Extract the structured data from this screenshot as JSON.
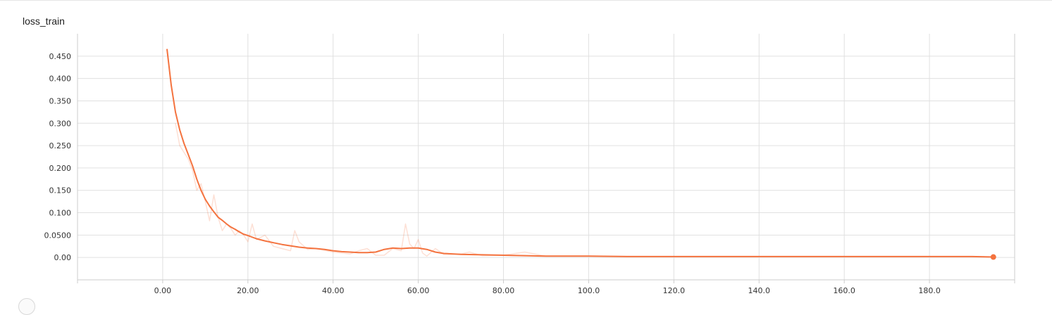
{
  "chart_data": {
    "type": "line",
    "title": "loss_train",
    "xlabel": "",
    "ylabel": "",
    "xlim": [
      -20,
      200
    ],
    "ylim": [
      -0.05,
      0.5
    ],
    "grid": true,
    "xticks": [
      0,
      20,
      40,
      60,
      80,
      100,
      120,
      140,
      160,
      180
    ],
    "xtick_labels": [
      "0.00",
      "20.00",
      "40.00",
      "60.00",
      "80.00",
      "100.0",
      "120.0",
      "140.0",
      "160.0",
      "180.0"
    ],
    "yticks": [
      0,
      0.05,
      0.1,
      0.15,
      0.2,
      0.25,
      0.3,
      0.35,
      0.4,
      0.45
    ],
    "ytick_labels": [
      "0.00",
      "0.0500",
      "0.100",
      "0.150",
      "0.200",
      "0.250",
      "0.300",
      "0.350",
      "0.400",
      "0.450"
    ],
    "series": [
      {
        "role": "smoothed",
        "color": "#f4733f",
        "x": [
          1,
          2,
          3,
          4,
          5,
          6,
          7,
          8,
          9,
          10,
          11,
          12,
          13,
          14,
          15,
          16,
          17,
          18,
          19,
          20,
          22,
          24,
          26,
          28,
          30,
          32,
          34,
          36,
          38,
          40,
          42,
          44,
          46,
          48,
          50,
          52,
          54,
          56,
          58,
          60,
          62,
          64,
          66,
          68,
          70,
          75,
          80,
          85,
          90,
          95,
          100,
          110,
          120,
          130,
          140,
          150,
          160,
          170,
          180,
          190,
          195
        ],
        "y": [
          0.466,
          0.385,
          0.325,
          0.285,
          0.255,
          0.23,
          0.205,
          0.175,
          0.15,
          0.13,
          0.115,
          0.102,
          0.09,
          0.083,
          0.075,
          0.068,
          0.063,
          0.057,
          0.052,
          0.049,
          0.042,
          0.037,
          0.033,
          0.029,
          0.026,
          0.023,
          0.021,
          0.02,
          0.018,
          0.015,
          0.013,
          0.012,
          0.011,
          0.011,
          0.012,
          0.018,
          0.021,
          0.02,
          0.021,
          0.021,
          0.018,
          0.012,
          0.009,
          0.008,
          0.007,
          0.006,
          0.005,
          0.004,
          0.003,
          0.003,
          0.003,
          0.002,
          0.002,
          0.002,
          0.002,
          0.002,
          0.002,
          0.002,
          0.002,
          0.002,
          0.001
        ]
      },
      {
        "role": "raw",
        "color": "#f4733f",
        "x": [
          3,
          4,
          5,
          6,
          7,
          8,
          9,
          10,
          11,
          12,
          13,
          14,
          15,
          16,
          17,
          18,
          19,
          20,
          21,
          22,
          24,
          26,
          28,
          30,
          31,
          32,
          34,
          36,
          38,
          40,
          44,
          46,
          48,
          50,
          52,
          54,
          56,
          57,
          58,
          59,
          60,
          61,
          62,
          64,
          66,
          70,
          72,
          75,
          80,
          85,
          90,
          100,
          120,
          140,
          160,
          180,
          195
        ],
        "y": [
          0.3,
          0.25,
          0.235,
          0.22,
          0.195,
          0.15,
          0.165,
          0.125,
          0.082,
          0.14,
          0.09,
          0.06,
          0.075,
          0.065,
          0.05,
          0.06,
          0.05,
          0.035,
          0.075,
          0.04,
          0.05,
          0.025,
          0.02,
          0.015,
          0.06,
          0.035,
          0.018,
          0.02,
          0.016,
          0.012,
          0.008,
          0.015,
          0.02,
          0.005,
          0.005,
          0.02,
          0.015,
          0.075,
          0.03,
          0.02,
          0.04,
          0.01,
          0.003,
          0.02,
          0.007,
          0.008,
          0.012,
          0.004,
          0.005,
          0.012,
          0.003,
          0.003,
          0.002,
          0.002,
          0.002,
          0.002,
          0.001
        ]
      }
    ]
  }
}
